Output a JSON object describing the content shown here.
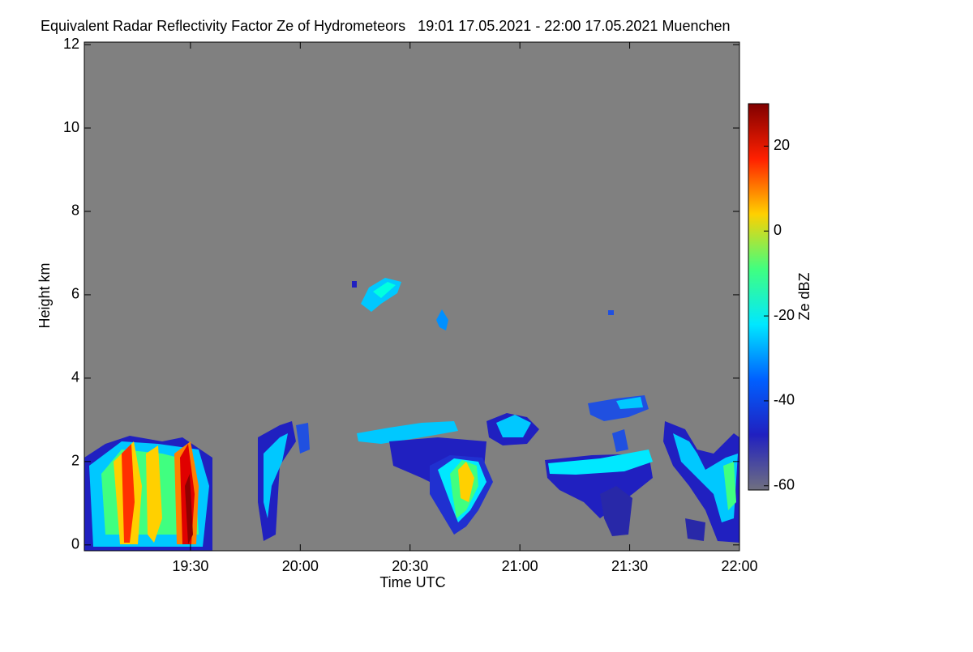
{
  "chart_data": {
    "type": "time-height",
    "title": "Equivalent Radar Reflectivity Factor Ze of Hydrometeors   19:01 17.05.2021 - 22:00 17.05.2021 Muenchen",
    "x_label": "Time UTC",
    "y_label": "Height km",
    "xlim": [
      19.0167,
      22.0
    ],
    "xticks": [
      {
        "value": 19.5,
        "label": "19:30"
      },
      {
        "value": 20.0,
        "label": "20:00"
      },
      {
        "value": 20.5,
        "label": "20:30"
      },
      {
        "value": 21.0,
        "label": "21:00"
      },
      {
        "value": 21.5,
        "label": "21:30"
      },
      {
        "value": 22.0,
        "label": "22:00"
      }
    ],
    "ylim": [
      -0.14,
      12.06
    ],
    "yticks": [
      0,
      2,
      4,
      6,
      8,
      10,
      12
    ],
    "background": "#808080",
    "colorbar_label": "Ze dBZ",
    "clim": [
      -61,
      30
    ],
    "cticks": [
      -60,
      -40,
      -20,
      0,
      20
    ],
    "colormap": [
      "#707080",
      "#2020c0",
      "#0060ff",
      "#00e8ff",
      "#40ff80",
      "#ffd000",
      "#ff2000",
      "#800000"
    ]
  }
}
